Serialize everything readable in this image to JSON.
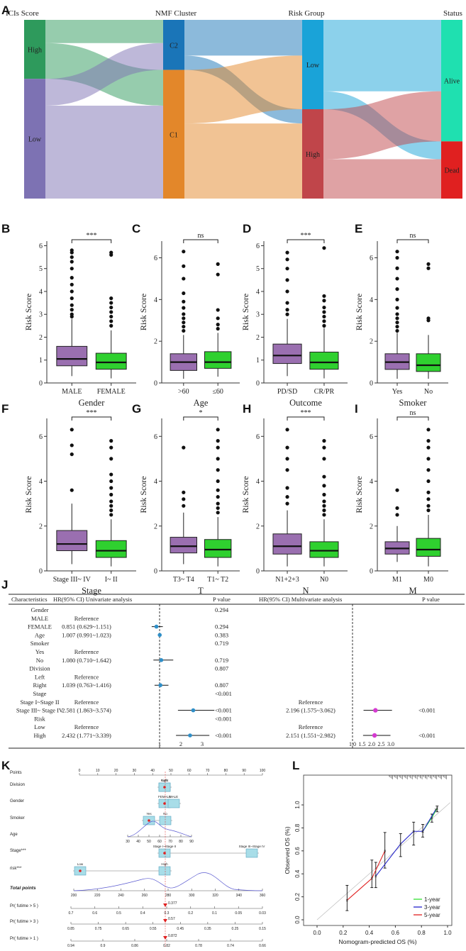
{
  "panel_letters": [
    "A",
    "B",
    "C",
    "D",
    "E",
    "F",
    "G",
    "H",
    "I",
    "J",
    "K",
    "L"
  ],
  "colors": {
    "high": "#2e9a5c",
    "low": "#7d72b3",
    "c2": "#1a75b8",
    "c1": "#e3872a",
    "risk_low": "#1aa3d8",
    "risk_high": "#c0454a",
    "alive": "#1fe0b0",
    "dead": "#e02020",
    "box_purple": "#9a6fb0",
    "box_green": "#2fd02f",
    "forest_blue": "#2f8fc8",
    "forest_magenta": "#d43ad0"
  },
  "chart_data": [
    {
      "type": "sankey",
      "panel": "A",
      "columns": [
        {
          "title": "ICIs Score",
          "nodes": [
            {
              "label": "High",
              "value": 33
            },
            {
              "label": "Low",
              "value": 67
            }
          ]
        },
        {
          "title": "NMF Cluster",
          "nodes": [
            {
              "label": "C2",
              "value": 28
            },
            {
              "label": "C1",
              "value": 72
            }
          ]
        },
        {
          "title": "Risk Group",
          "nodes": [
            {
              "label": "Low",
              "value": 50
            },
            {
              "label": "High",
              "value": 50
            }
          ]
        },
        {
          "title": "Status",
          "nodes": [
            {
              "label": "Alive",
              "value": 68
            },
            {
              "label": "Dead",
              "value": 32
            }
          ]
        }
      ],
      "links": [
        {
          "stage": 0,
          "from": "High",
          "to": "C2",
          "value": 13
        },
        {
          "stage": 0,
          "from": "High",
          "to": "C1",
          "value": 20
        },
        {
          "stage": 0,
          "from": "Low",
          "to": "C2",
          "value": 15
        },
        {
          "stage": 0,
          "from": "Low",
          "to": "C1",
          "value": 52
        },
        {
          "stage": 1,
          "from": "C2",
          "to": "Low",
          "value": 20
        },
        {
          "stage": 1,
          "from": "C2",
          "to": "High",
          "value": 8
        },
        {
          "stage": 1,
          "from": "C1",
          "to": "Low",
          "value": 30
        },
        {
          "stage": 1,
          "from": "C1",
          "to": "High",
          "value": 42
        },
        {
          "stage": 2,
          "from": "Low",
          "to": "Alive",
          "value": 40
        },
        {
          "stage": 2,
          "from": "Low",
          "to": "Dead",
          "value": 10
        },
        {
          "stage": 2,
          "from": "High",
          "to": "Alive",
          "value": 28
        },
        {
          "stage": 2,
          "from": "High",
          "to": "Dead",
          "value": 22
        }
      ]
    },
    {
      "type": "box",
      "panel": "B",
      "xlabel": "Gender",
      "ylabel": "Risk Score",
      "ylim": [
        0,
        6.2
      ],
      "yticks": [
        0,
        1,
        2,
        3,
        4,
        5,
        6
      ],
      "sig": "***",
      "groups": [
        {
          "label": "MALE",
          "q1": 0.75,
          "median": 1.05,
          "q3": 1.6,
          "min": 0.3,
          "max": 2.8,
          "outliers": [
            2.9,
            3.0,
            3.2,
            3.4,
            3.7,
            4.0,
            4.3,
            4.6,
            5.0,
            5.3,
            5.5,
            5.7,
            5.8
          ]
        },
        {
          "label": "FEMALE",
          "q1": 0.6,
          "median": 0.9,
          "q3": 1.3,
          "min": 0.2,
          "max": 2.3,
          "outliers": [
            2.5,
            2.7,
            2.9,
            3.1,
            3.3,
            3.5,
            3.7,
            5.6,
            5.7
          ]
        }
      ]
    },
    {
      "type": "box",
      "panel": "C",
      "xlabel": "Age",
      "ylabel": "Risk Score",
      "ylim": [
        0,
        6.8
      ],
      "yticks": [
        0,
        2,
        4,
        6
      ],
      "sig": "ns",
      "groups": [
        {
          "label": ">60",
          "q1": 0.6,
          "median": 1.0,
          "q3": 1.4,
          "min": 0.2,
          "max": 2.3,
          "outliers": [
            2.5,
            2.7,
            2.9,
            3.1,
            3.3,
            3.6,
            3.9,
            4.3,
            5.0,
            5.6,
            6.3
          ]
        },
        {
          "label": "≤60",
          "q1": 0.7,
          "median": 1.0,
          "q3": 1.5,
          "min": 0.3,
          "max": 2.4,
          "outliers": [
            2.6,
            2.8,
            3.1,
            3.5,
            5.2,
            5.7
          ]
        }
      ]
    },
    {
      "type": "box",
      "panel": "D",
      "xlabel": "Outcome",
      "ylabel": "Risk Score",
      "ylim": [
        0,
        6.2
      ],
      "yticks": [
        0,
        1,
        2,
        3,
        4,
        5,
        6
      ],
      "sig": "***",
      "groups": [
        {
          "label": "PD/SD",
          "q1": 0.85,
          "median": 1.2,
          "q3": 1.7,
          "min": 0.3,
          "max": 2.8,
          "outliers": [
            3.0,
            3.2,
            3.5,
            4.0,
            4.5,
            5.0,
            5.4,
            5.7
          ]
        },
        {
          "label": "CR/PR",
          "q1": 0.6,
          "median": 0.9,
          "q3": 1.35,
          "min": 0.2,
          "max": 2.4,
          "outliers": [
            2.5,
            2.7,
            2.9,
            3.1,
            3.3,
            3.6,
            3.8,
            5.9
          ]
        }
      ]
    },
    {
      "type": "box",
      "panel": "E",
      "xlabel": "Smoker",
      "ylabel": "Risk Score",
      "ylim": [
        0,
        6.8
      ],
      "yticks": [
        0,
        2,
        4,
        6
      ],
      "sig": "ns",
      "groups": [
        {
          "label": "Yes",
          "q1": 0.65,
          "median": 1.0,
          "q3": 1.4,
          "min": 0.2,
          "max": 2.4,
          "outliers": [
            2.5,
            2.7,
            2.9,
            3.1,
            3.3,
            3.6,
            4.0,
            4.5,
            5.0,
            5.5,
            6.0,
            6.3
          ]
        },
        {
          "label": "No",
          "q1": 0.55,
          "median": 0.85,
          "q3": 1.4,
          "min": 0.2,
          "max": 2.3,
          "outliers": [
            3.0,
            3.1,
            5.5,
            5.7
          ]
        }
      ]
    },
    {
      "type": "box",
      "panel": "F",
      "xlabel": "Stage",
      "ylabel": "Risk Score",
      "ylim": [
        0,
        6.8
      ],
      "yticks": [
        0,
        2,
        4,
        6
      ],
      "sig": "***",
      "groups": [
        {
          "label": "Stage III~ IV",
          "q1": 0.9,
          "median": 1.2,
          "q3": 1.8,
          "min": 0.3,
          "max": 3.0,
          "outliers": [
            3.6,
            5.2,
            5.6,
            6.3
          ]
        },
        {
          "label": "I~ II",
          "q1": 0.6,
          "median": 0.9,
          "q3": 1.35,
          "min": 0.2,
          "max": 2.3,
          "outliers": [
            2.5,
            2.7,
            2.9,
            3.1,
            3.4,
            3.7,
            4.0,
            4.3,
            5.0,
            5.5,
            5.8
          ]
        }
      ]
    },
    {
      "type": "box",
      "panel": "G",
      "xlabel": "T",
      "ylabel": "Risk Score",
      "ylim": [
        0,
        6.8
      ],
      "yticks": [
        0,
        2,
        4,
        6
      ],
      "sig": "*",
      "groups": [
        {
          "label": "T3~ T4",
          "q1": 0.8,
          "median": 1.1,
          "q3": 1.5,
          "min": 0.3,
          "max": 2.6,
          "outliers": [
            2.9,
            3.2,
            3.5,
            5.5
          ]
        },
        {
          "label": "T1~ T2",
          "q1": 0.6,
          "median": 0.95,
          "q3": 1.4,
          "min": 0.2,
          "max": 2.4,
          "outliers": [
            2.6,
            2.8,
            3.0,
            3.3,
            3.6,
            4.0,
            4.5,
            5.0,
            5.5,
            5.8,
            6.3
          ]
        }
      ]
    },
    {
      "type": "box",
      "panel": "H",
      "xlabel": "N",
      "ylabel": "Risk Score",
      "ylim": [
        0,
        6.8
      ],
      "yticks": [
        0,
        2,
        4,
        6
      ],
      "sig": "***",
      "groups": [
        {
          "label": "N1+2+3",
          "q1": 0.75,
          "median": 1.1,
          "q3": 1.65,
          "min": 0.2,
          "max": 2.7,
          "outliers": [
            3.0,
            3.3,
            3.7,
            4.5,
            5.0,
            5.5,
            6.3
          ]
        },
        {
          "label": "N0",
          "q1": 0.6,
          "median": 0.9,
          "q3": 1.3,
          "min": 0.2,
          "max": 2.3,
          "outliers": [
            2.5,
            2.7,
            2.9,
            3.1,
            3.4,
            3.8,
            4.2,
            5.0,
            5.5,
            5.8
          ]
        }
      ]
    },
    {
      "type": "box",
      "panel": "I",
      "xlabel": "M",
      "ylabel": "Risk Score",
      "ylim": [
        0,
        6.8
      ],
      "yticks": [
        0,
        2,
        4,
        6
      ],
      "sig": "ns",
      "groups": [
        {
          "label": "M1",
          "q1": 0.75,
          "median": 1.0,
          "q3": 1.3,
          "min": 0.4,
          "max": 2.0,
          "outliers": [
            2.5,
            2.8,
            3.6
          ]
        },
        {
          "label": "M0",
          "q1": 0.65,
          "median": 0.95,
          "q3": 1.45,
          "min": 0.2,
          "max": 2.5,
          "outliers": [
            2.7,
            2.9,
            3.2,
            3.5,
            4.0,
            4.5,
            5.0,
            5.5,
            5.8,
            6.3
          ]
        }
      ]
    },
    {
      "type": "forest",
      "panel": "J",
      "headers": [
        "Characteristics",
        "HR(95% CI) Univariate analysis",
        "P value",
        "HR(95% CI) Multivariate analysis",
        "P value"
      ],
      "rows": [
        {
          "label": "Gender",
          "hr": "",
          "p": "0.294",
          "mhr": "",
          "mp": ""
        },
        {
          "label": "MALE",
          "hr": "Reference",
          "p": "",
          "mhr": "",
          "mp": ""
        },
        {
          "label": "FEMALE",
          "hr": "0.851 (0.629~1.151)",
          "p": "0.294",
          "mhr": "",
          "mp": "",
          "est": 0.851,
          "lo": 0.629,
          "hi": 1.151
        },
        {
          "label": "Age",
          "hr": "1.007 (0.991~1.023)",
          "p": "0.383",
          "mhr": "",
          "mp": "",
          "est": 1.007,
          "lo": 0.991,
          "hi": 1.023
        },
        {
          "label": "Smoker",
          "hr": "",
          "p": "0.719",
          "mhr": "",
          "mp": ""
        },
        {
          "label": "Yes",
          "hr": "Reference",
          "p": "",
          "mhr": "",
          "mp": ""
        },
        {
          "label": "No",
          "hr": "1.080 (0.710~1.642)",
          "p": "0.719",
          "mhr": "",
          "mp": "",
          "est": 1.08,
          "lo": 0.71,
          "hi": 1.642
        },
        {
          "label": "Division",
          "hr": "",
          "p": "0.807",
          "mhr": "",
          "mp": ""
        },
        {
          "label": "Left",
          "hr": "Reference",
          "p": "",
          "mhr": "",
          "mp": ""
        },
        {
          "label": "Right",
          "hr": "1.039 (0.763~1.416)",
          "p": "0.807",
          "mhr": "",
          "mp": "",
          "est": 1.039,
          "lo": 0.763,
          "hi": 1.416
        },
        {
          "label": "Stage",
          "hr": "",
          "p": "<0.001",
          "mhr": "",
          "mp": ""
        },
        {
          "label": "Stage I~Stage II",
          "hr": "Reference",
          "p": "",
          "mhr": "Reference",
          "mp": ""
        },
        {
          "label": "Stage III~ Stage IV",
          "hr": "2.581 (1.863~3.574)",
          "p": "<0.001",
          "mhr": "2.196 (1.575~3.062)",
          "mp": "<0.001",
          "est": 2.581,
          "lo": 1.863,
          "hi": 3.574,
          "mest": 2.196,
          "mlo": 1.575,
          "mhi": 3.062
        },
        {
          "label": "Risk",
          "hr": "",
          "p": "<0.001",
          "mhr": "",
          "mp": ""
        },
        {
          "label": "Low",
          "hr": "Reference",
          "p": "",
          "mhr": "Reference",
          "mp": ""
        },
        {
          "label": "High",
          "hr": "2.432 (1.771~3.339)",
          "p": "<0.001",
          "mhr": "2.151 (1.551~2.982)",
          "mp": "<0.001",
          "est": 2.432,
          "lo": 1.771,
          "hi": 3.339,
          "mest": 2.151,
          "mlo": 1.551,
          "mhi": 2.982
        }
      ],
      "uni_ticks": [
        "1",
        "2",
        "3"
      ],
      "multi_ticks": [
        "1.0",
        "1.5",
        "2.0",
        "2.5",
        "3.0"
      ]
    },
    {
      "type": "nomogram",
      "panel": "K",
      "rows": [
        {
          "label": "Points",
          "ticks": [
            "0",
            "10",
            "20",
            "30",
            "40",
            "50",
            "60",
            "70",
            "80",
            "90",
            "100"
          ]
        },
        {
          "label": "Division",
          "levels": [
            "Right",
            "Left"
          ]
        },
        {
          "label": "Gender",
          "levels": [
            "FEMALE",
            "MALE"
          ]
        },
        {
          "label": "Smoker",
          "levels": [
            "Yes",
            "No"
          ]
        },
        {
          "label": "Age",
          "ticks": [
            "30",
            "40",
            "50",
            "60",
            "70",
            "80",
            "90"
          ]
        },
        {
          "label": "Stage***",
          "levels": [
            "Stage I~Stage II",
            "Stage III~Stage IV"
          ]
        },
        {
          "label": "risk***",
          "levels": [
            "Low",
            "High"
          ]
        },
        {
          "label": "Total points",
          "ticks": [
            "200",
            "220",
            "240",
            "260",
            "280",
            "300",
            "320",
            "340",
            "360"
          ]
        },
        {
          "label": "Pr( futime > 5 )",
          "ticks": [
            "0.7",
            "0.6",
            "0.5",
            "0.4",
            "0.3",
            "0.2",
            "0.1",
            "0.05",
            "0.03"
          ],
          "value": "0.377"
        },
        {
          "label": "Pr( futime > 3 )",
          "ticks": [
            "0.85",
            "0.75",
            "0.65",
            "0.55",
            "0.45",
            "0.35",
            "0.25",
            "0.15"
          ],
          "value": "0.57"
        },
        {
          "label": "Pr( futime > 1 )",
          "ticks": [
            "0.94",
            "0.9",
            "0.86",
            "0.82",
            "0.78",
            "0.74",
            "0.66"
          ],
          "value": "0.872"
        }
      ]
    },
    {
      "type": "calibration",
      "panel": "L",
      "xlabel": "Nomogram-predicted OS (%)",
      "ylabel": "Observed OS (%)",
      "xticks": [
        "0.0",
        "0.2",
        "0.4",
        "0.6",
        "0.8",
        "1.0"
      ],
      "yticks": [
        "0.0",
        "0.2",
        "0.4",
        "0.6",
        "0.8",
        "1.0"
      ],
      "series": [
        {
          "name": "1-year",
          "color": "#32e032",
          "points": [
            [
              0.81,
              0.77
            ],
            [
              0.88,
              0.89
            ],
            [
              0.92,
              0.97
            ]
          ]
        },
        {
          "name": "3-year",
          "color": "#2222cc",
          "points": [
            [
              0.45,
              0.38
            ],
            [
              0.64,
              0.66
            ],
            [
              0.74,
              0.77
            ],
            [
              0.81,
              0.77
            ],
            [
              0.91,
              0.96
            ]
          ]
        },
        {
          "name": "5-year",
          "color": "#e02020",
          "points": [
            [
              0.23,
              0.17
            ],
            [
              0.42,
              0.36
            ],
            [
              0.52,
              0.6
            ]
          ]
        }
      ],
      "errors": [
        [
          0.23,
          0.08,
          0.3
        ],
        [
          0.42,
          0.28,
          0.52
        ],
        [
          0.45,
          0.28,
          0.5
        ],
        [
          0.52,
          0.45,
          0.76
        ],
        [
          0.64,
          0.55,
          0.75
        ],
        [
          0.74,
          0.65,
          0.85
        ],
        [
          0.81,
          0.72,
          0.83
        ],
        [
          0.88,
          0.85,
          0.92
        ],
        [
          0.92,
          0.94,
          0.99
        ]
      ]
    }
  ]
}
